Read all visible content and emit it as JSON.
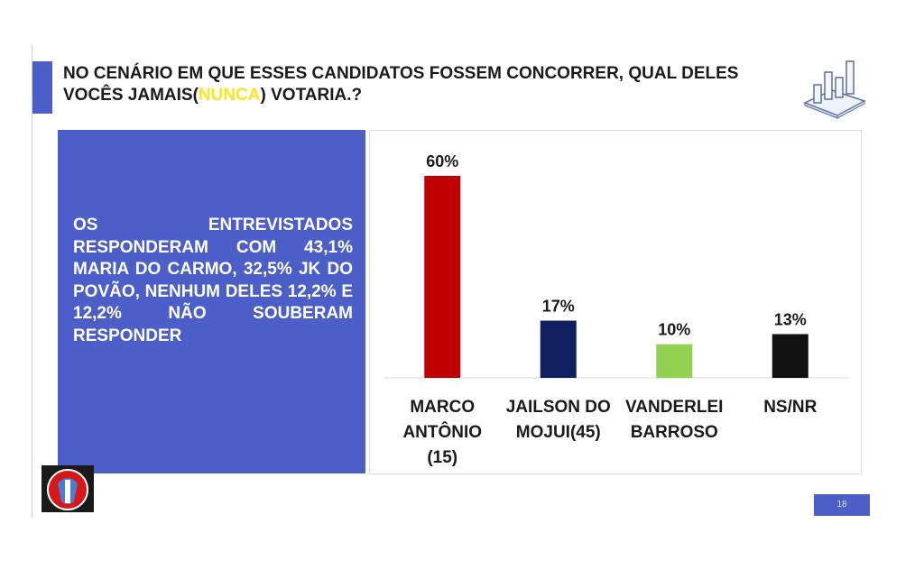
{
  "slide": {
    "title_part1": "NO CENÁRIO EM QUE ESSES CANDIDATOS FOSSEM CONCORRER, QUAL DELES VOCÊS JAMAIS(",
    "title_highlight": "NUNCA",
    "title_part2": ") VOTARIA.?",
    "summary": "OS ENTREVISTADOS RESPONDERAM COM 43,1% MARIA DO CARMO, 32,5% JK DO POVÃO, NENHUM DELES 12,2% E 12,2% NÃO SOUBERAM RESPONDER",
    "page_number": "18",
    "highlight_color": "#ffe51a",
    "accent_color": "#4c5ec8"
  },
  "chart_data": {
    "type": "bar",
    "categories": [
      "MARCO ANTÔNIO (15)",
      "JAILSON DO MOJUI(45)",
      "VANDERLEI BARROSO",
      "NS/NR"
    ],
    "category_lines": [
      [
        "MARCO",
        "ANTÔNIO",
        "(15)"
      ],
      [
        "JAILSON DO",
        "MOJUI(45)"
      ],
      [
        "VANDERLEI",
        "BARROSO"
      ],
      [
        "NS/NR"
      ]
    ],
    "values": [
      60,
      17,
      10,
      13
    ],
    "value_labels": [
      "60%",
      "17%",
      "10%",
      "13%"
    ],
    "colors": [
      "#c00000",
      "#112060",
      "#92d050",
      "#111111"
    ],
    "ylim": [
      0,
      60
    ],
    "grid": false,
    "legend": "none"
  }
}
